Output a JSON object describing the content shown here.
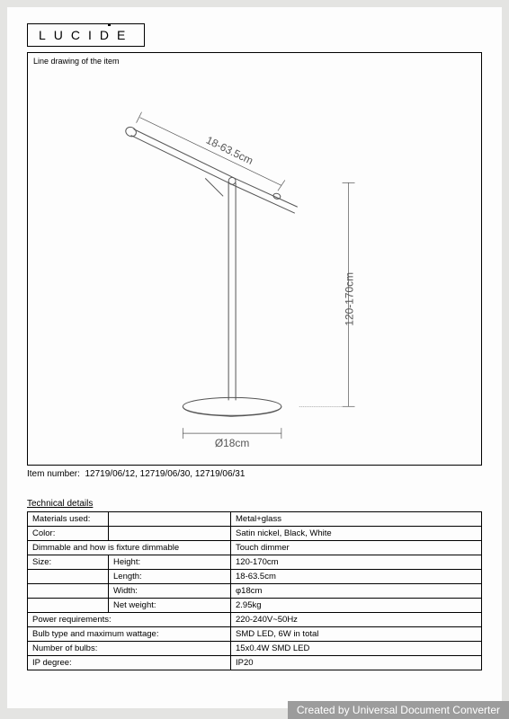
{
  "logo": {
    "text": "LUCIDE"
  },
  "drawing": {
    "label": "Line drawing of the item",
    "arm_label": "18-63.5cm",
    "height_label": "120-170cm",
    "base_label": "Ø18cm",
    "stroke": "#555555",
    "text_color": "#555555"
  },
  "item_number": {
    "label": "Item number:",
    "value": "12719/06/12, 12719/06/30, 12719/06/31"
  },
  "tech": {
    "title": "Technical details",
    "rows": [
      {
        "a": "Materials used:",
        "b": "",
        "c": "Metal+glass"
      },
      {
        "a": "Color:",
        "b": "",
        "c": "Satin nickel, Black, White"
      },
      {
        "a": "Dimmable and how is fixture dimmable",
        "b": "",
        "c": "Touch dimmer",
        "span": true
      },
      {
        "a": "Size:",
        "b": "Height:",
        "c": "120-170cm"
      },
      {
        "a": "",
        "b": "Length:",
        "c": "18-63.5cm"
      },
      {
        "a": "",
        "b": "Width:",
        "c": "φ18cm"
      },
      {
        "a": "",
        "b": "Net weight:",
        "c": "2.95kg"
      },
      {
        "a": "Power requirements:",
        "b": "",
        "c": "220-240V~50Hz",
        "span": true
      },
      {
        "a": "Bulb type and maximum wattage:",
        "b": "",
        "c": "SMD LED, 6W in total",
        "span": true
      },
      {
        "a": "Number of bulbs:",
        "b": "",
        "c": "15x0.4W SMD LED",
        "span": true
      },
      {
        "a": "IP degree:",
        "b": "",
        "c": "IP20",
        "span": true
      }
    ]
  },
  "footer": "Created by Universal Document Converter"
}
